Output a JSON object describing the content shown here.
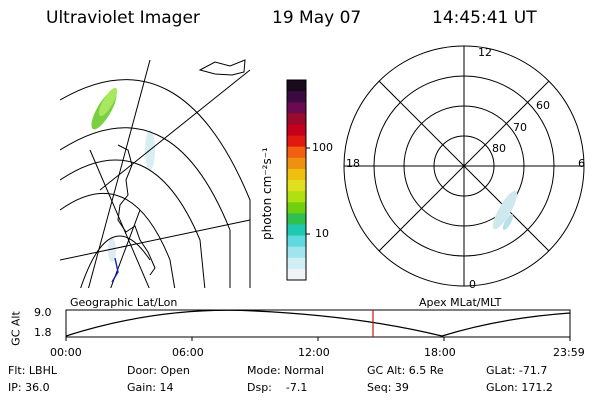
{
  "header": {
    "title": "Ultraviolet Imager",
    "date": "19 May 07",
    "time": "14:45:41 UT"
  },
  "colorbar": {
    "unit_label": "photon cm⁻²s⁻¹",
    "ticks": [
      "100",
      "10"
    ],
    "colors": [
      "#1a0a1e",
      "#3a0a40",
      "#6a0a50",
      "#9a0a2a",
      "#c4001a",
      "#e01a10",
      "#f06010",
      "#f09010",
      "#f0c010",
      "#e0e020",
      "#b0e010",
      "#70d010",
      "#30c050",
      "#20c8b0",
      "#60d8e0",
      "#a0e4ee",
      "#d0eef4",
      "#eef4f8"
    ]
  },
  "polar_plot": {
    "mlt_labels": [
      "12",
      "18",
      "6",
      "0"
    ],
    "lat_labels": [
      "60",
      "70",
      "80"
    ]
  },
  "timeline": {
    "left_title": "Geographic Lat/Lon",
    "right_title": "Apex MLat/MLT",
    "axis_label": "GC Alt",
    "y_ticks": [
      "9.0",
      "1.8"
    ],
    "x_ticks": [
      "00:00",
      "06:00",
      "12:00",
      "18:00",
      "23:59"
    ],
    "current_marker_time": "14:45"
  },
  "info": {
    "flt": "Flt: LBHL",
    "ip": "IP: 36.0",
    "door": "Door: Open",
    "gain": "Gain: 14",
    "mode": "Mode: Normal",
    "dsp": "Dsp:    -7.1",
    "gc_alt": "GC Alt: 6.5 Re",
    "seq": "Seq: 39",
    "glat": "GLat: -71.7",
    "glon": "GLon: 171.2"
  }
}
